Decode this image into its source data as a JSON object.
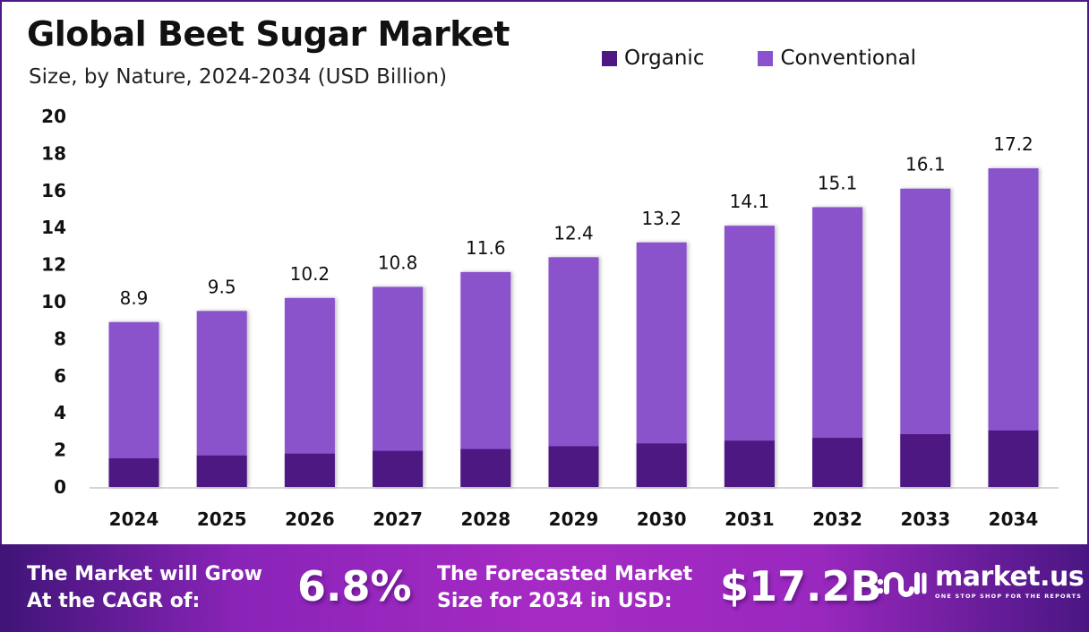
{
  "colors": {
    "organic": "#4e1882",
    "conventional": "#8a52cc",
    "axis": "#d4d4d8",
    "text": "#111111"
  },
  "chart_data": {
    "type": "bar",
    "stacked": true,
    "title": "Global Beet Sugar Market",
    "subtitle": "Size, by Nature, 2024-2034 (USD Billion)",
    "xlabel": "",
    "ylabel": "",
    "ylim": [
      0,
      20
    ],
    "yticks": [
      0,
      2,
      4,
      6,
      8,
      10,
      12,
      14,
      16,
      18,
      20
    ],
    "grid": false,
    "legend_position": "top-right",
    "categories": [
      "2024",
      "2025",
      "2026",
      "2027",
      "2028",
      "2029",
      "2030",
      "2031",
      "2032",
      "2033",
      "2034"
    ],
    "totals": [
      8.9,
      9.5,
      10.2,
      10.8,
      11.6,
      12.4,
      13.2,
      14.1,
      15.1,
      16.1,
      17.2
    ],
    "total_labels": [
      "8.9",
      "9.5",
      "10.2",
      "10.8",
      "11.6",
      "12.4",
      "13.2",
      "14.1",
      "15.1",
      "16.1",
      "17.2"
    ],
    "series": [
      {
        "name": "Organic",
        "values": [
          1.55,
          1.7,
          1.8,
          1.95,
          2.05,
          2.2,
          2.35,
          2.5,
          2.65,
          2.85,
          3.05
        ]
      },
      {
        "name": "Conventional",
        "values": [
          7.35,
          7.8,
          8.4,
          8.85,
          9.55,
          10.2,
          10.85,
          11.6,
          12.45,
          13.25,
          14.15
        ]
      }
    ]
  },
  "banner": {
    "cagr_label_line1": "The Market will Grow",
    "cagr_label_line2": "At the CAGR of:",
    "cagr_value": "6.8%",
    "forecast_label_line1": "The Forecasted Market",
    "forecast_label_line2": "Size for 2034 in USD:",
    "forecast_value": "$17.2B"
  },
  "logo": {
    "name": "market.us",
    "tagline": "ONE STOP SHOP FOR THE REPORTS",
    "icon": "market-us-logo-icon"
  }
}
